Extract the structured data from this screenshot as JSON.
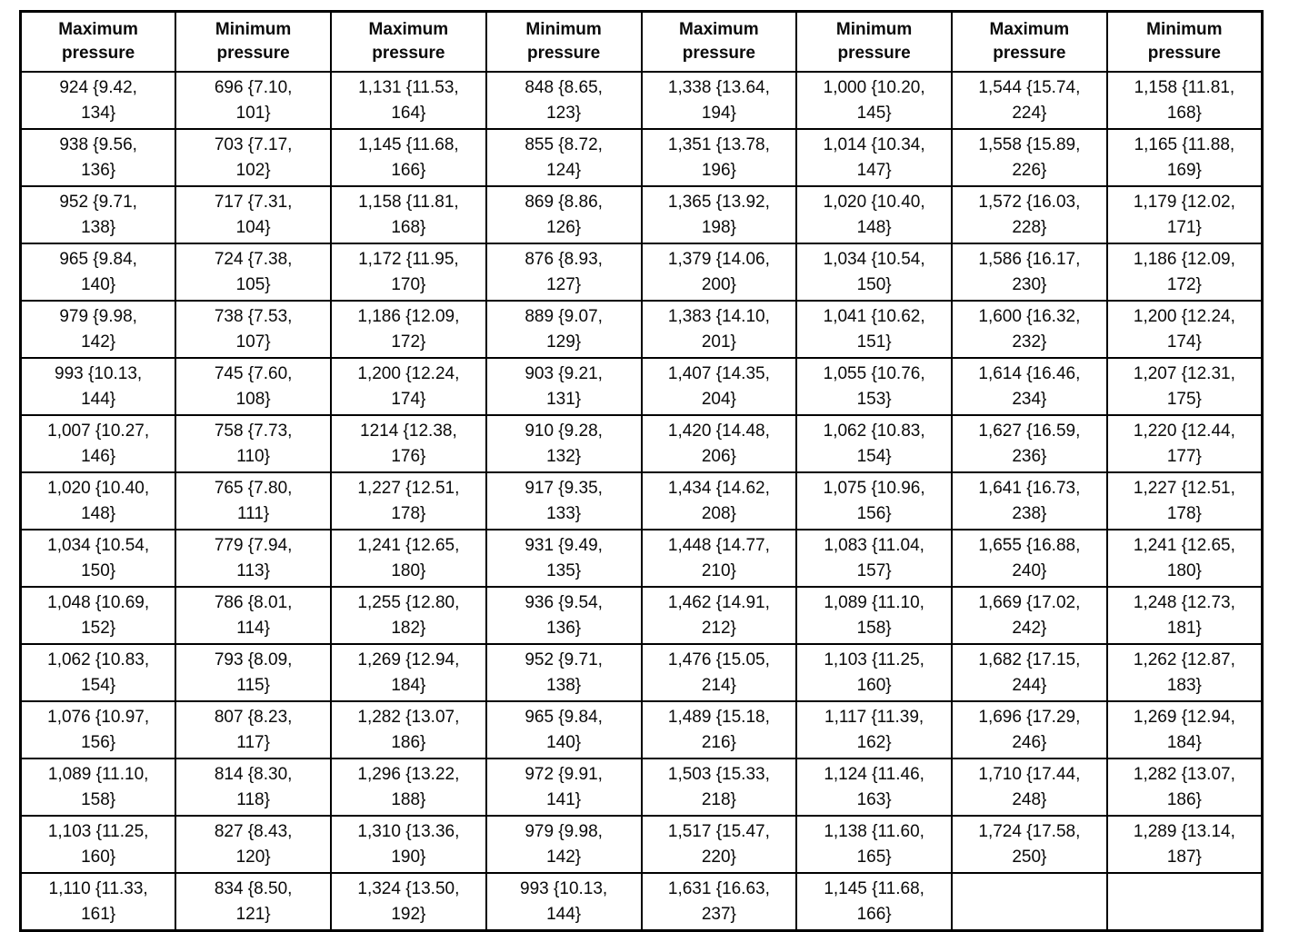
{
  "table": {
    "column_headers": [
      "Maximum\npressure",
      "Minimum\npressure",
      "Maximum\npressure",
      "Minimum\npressure",
      "Maximum\npressure",
      "Minimum\npressure",
      "Maximum\npressure",
      "Minimum\npressure"
    ],
    "rows": [
      [
        "924 {9.42,\n134}",
        "696 {7.10,\n101}",
        "1,131 {11.53,\n164}",
        "848 {8.65,\n123}",
        "1,338 {13.64,\n194}",
        "1,000 {10.20,\n145}",
        "1,544 {15.74,\n224}",
        "1,158 {11.81,\n168}"
      ],
      [
        "938 {9.56,\n136}",
        "703 {7.17,\n102}",
        "1,145 {11.68,\n166}",
        "855 {8.72,\n124}",
        "1,351 {13.78,\n196}",
        "1,014 {10.34,\n147}",
        "1,558 {15.89,\n226}",
        "1,165 {11.88,\n169}"
      ],
      [
        "952 {9.71,\n138}",
        "717 {7.31,\n104}",
        "1,158 {11.81,\n168}",
        "869 {8.86,\n126}",
        "1,365 {13.92,\n198}",
        "1,020 {10.40,\n148}",
        "1,572 {16.03,\n228}",
        "1,179 {12.02,\n171}"
      ],
      [
        "965 {9.84,\n140}",
        "724 {7.38,\n105}",
        "1,172 {11.95,\n170}",
        "876 {8.93,\n127}",
        "1,379 {14.06,\n200}",
        "1,034 {10.54,\n150}",
        "1,586 {16.17,\n230}",
        "1,186 {12.09,\n172}"
      ],
      [
        "979 {9.98,\n142}",
        "738 {7.53,\n107}",
        "1,186 {12.09,\n172}",
        "889 {9.07,\n129}",
        "1,383 {14.10,\n201}",
        "1,041 {10.62,\n151}",
        "1,600 {16.32,\n232}",
        "1,200 {12.24,\n174}"
      ],
      [
        "993 {10.13,\n144}",
        "745 {7.60,\n108}",
        "1,200 {12.24,\n174}",
        "903 {9.21,\n131}",
        "1,407 {14.35,\n204}",
        "1,055 {10.76,\n153}",
        "1,614 {16.46,\n234}",
        "1,207 {12.31,\n175}"
      ],
      [
        "1,007 {10.27,\n146}",
        "758 {7.73,\n110}",
        "1214 {12.38,\n176}",
        "910 {9.28,\n132}",
        "1,420 {14.48,\n206}",
        "1,062 {10.83,\n154}",
        "1,627 {16.59,\n236}",
        "1,220 {12.44,\n177}"
      ],
      [
        "1,020 {10.40,\n148}",
        "765 {7.80,\n111}",
        "1,227 {12.51,\n178}",
        "917 {9.35,\n133}",
        "1,434 {14.62,\n208}",
        "1,075 {10.96,\n156}",
        "1,641 {16.73,\n238}",
        "1,227 {12.51,\n178}"
      ],
      [
        "1,034 {10.54,\n150}",
        "779 {7.94,\n113}",
        "1,241 {12.65,\n180}",
        "931 {9.49,\n135}",
        "1,448 {14.77,\n210}",
        "1,083 {11.04,\n157}",
        "1,655 {16.88,\n240}",
        "1,241 {12.65,\n180}"
      ],
      [
        "1,048 {10.69,\n152}",
        "786 {8.01,\n114}",
        "1,255 {12.80,\n182}",
        "936 {9.54,\n136}",
        "1,462 {14.91,\n212}",
        "1,089 {11.10,\n158}",
        "1,669 {17.02,\n242}",
        "1,248 {12.73,\n181}"
      ],
      [
        "1,062 {10.83,\n154}",
        "793 {8.09,\n115}",
        "1,269 {12.94,\n184}",
        "952 {9.71,\n138}",
        "1,476 {15.05,\n214}",
        "1,103 {11.25,\n160}",
        "1,682 {17.15,\n244}",
        "1,262 {12.87,\n183}"
      ],
      [
        "1,076 {10.97,\n156}",
        "807 {8.23,\n117}",
        "1,282 {13.07,\n186}",
        "965 {9.84,\n140}",
        "1,489 {15.18,\n216}",
        "1,117 {11.39,\n162}",
        "1,696 {17.29,\n246}",
        "1,269 {12.94,\n184}"
      ],
      [
        "1,089 {11.10,\n158}",
        "814 {8.30,\n118}",
        "1,296 {13.22,\n188}",
        "972 {9.91,\n141}",
        "1,503 {15.33,\n218}",
        "1,124 {11.46,\n163}",
        "1,710 {17.44,\n248}",
        "1,282 {13.07,\n186}"
      ],
      [
        "1,103 {11.25,\n160}",
        "827 {8.43,\n120}",
        "1,310 {13.36,\n190}",
        "979 {9.98,\n142}",
        "1,517 {15.47,\n220}",
        "1,138 {11.60,\n165}",
        "1,724 {17.58,\n250}",
        "1,289 {13.14,\n187}"
      ],
      [
        "1,110 {11.33,\n161}",
        "834 {8.50,\n121}",
        "1,324 {13.50,\n192}",
        "993 {10.13,\n144}",
        "1,631 {16.63,\n237}",
        "1,145 {11.68,\n166}",
        "",
        ""
      ]
    ],
    "colors": {
      "border": "#000000",
      "background": "#ffffff",
      "text": "#0a0a0a"
    }
  }
}
